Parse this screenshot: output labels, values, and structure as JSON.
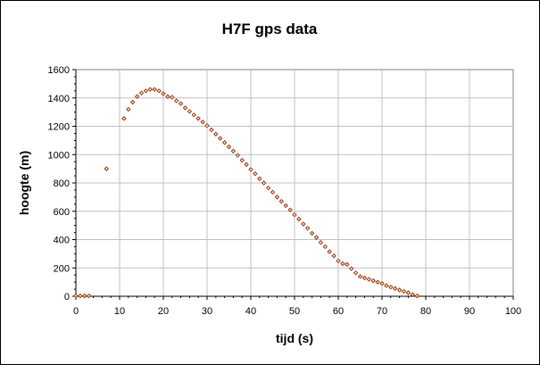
{
  "chart_data": {
    "type": "scatter",
    "title": "H7F gps data",
    "xlabel": "tijd (s)",
    "ylabel": "hoogte (m)",
    "xlim": [
      0,
      100
    ],
    "ylim": [
      0,
      1600
    ],
    "x_ticks": [
      0,
      10,
      20,
      30,
      40,
      50,
      60,
      70,
      80,
      90,
      100
    ],
    "y_ticks": [
      0,
      200,
      400,
      600,
      800,
      1000,
      1200,
      1400,
      1600
    ],
    "grid": true,
    "legend": "none",
    "marker_color": "#993300",
    "series": [
      {
        "x": [
          0,
          1,
          2,
          3,
          7,
          11,
          12,
          13,
          14,
          15,
          16,
          17,
          18,
          19,
          20,
          21,
          22,
          23,
          24,
          25,
          26,
          27,
          28,
          29,
          30,
          31,
          32,
          33,
          34,
          35,
          36,
          37,
          38,
          39,
          40,
          41,
          42,
          43,
          44,
          45,
          46,
          47,
          48,
          49,
          50,
          51,
          52,
          53,
          54,
          55,
          56,
          57,
          58,
          59,
          60,
          61,
          62,
          63,
          64,
          65,
          66,
          67,
          68,
          69,
          70,
          71,
          72,
          73,
          74,
          75,
          76,
          77,
          78
        ],
        "y": [
          3,
          3,
          3,
          3,
          900,
          1255,
          1320,
          1370,
          1410,
          1435,
          1450,
          1460,
          1460,
          1450,
          1430,
          1410,
          1405,
          1380,
          1360,
          1330,
          1305,
          1280,
          1255,
          1230,
          1205,
          1175,
          1145,
          1115,
          1085,
          1055,
          1025,
          995,
          960,
          930,
          895,
          865,
          830,
          800,
          765,
          735,
          700,
          670,
          640,
          610,
          575,
          545,
          510,
          480,
          445,
          415,
          380,
          350,
          315,
          285,
          250,
          230,
          225,
          195,
          165,
          140,
          130,
          120,
          110,
          100,
          90,
          75,
          65,
          55,
          45,
          35,
          25,
          12,
          3
        ]
      }
    ]
  }
}
